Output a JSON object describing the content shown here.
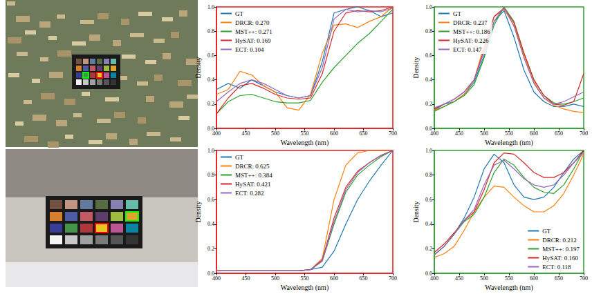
{
  "chart_data": [
    {
      "type": "line",
      "xlabel": "Wavelength (nm)",
      "ylabel": "Density",
      "x": [
        400,
        420,
        440,
        460,
        480,
        500,
        520,
        540,
        560,
        580,
        600,
        620,
        640,
        660,
        680,
        700
      ],
      "xlim": [
        400,
        700
      ],
      "xticks": [
        400,
        450,
        500,
        550,
        600,
        650,
        700
      ],
      "ylim": [
        0,
        1
      ],
      "yticks": [
        {
          "value": 0,
          "label": "0.0"
        },
        0.2,
        0.4,
        0.6,
        0.8,
        {
          "value": 1,
          "label": "1.0"
        }
      ],
      "grid": false,
      "legend": "upper left",
      "series": [
        {
          "name": "GT",
          "color": "#1f77b4",
          "values": [
            0.32,
            0.37,
            0.33,
            0.4,
            0.35,
            0.3,
            0.27,
            0.25,
            0.27,
            0.55,
            0.95,
            0.98,
            1.0,
            0.97,
            0.92,
            0.95
          ]
        },
        {
          "name": "DRCR: 0.270",
          "color": "#ff7f0e",
          "values": [
            0.28,
            0.32,
            0.47,
            0.44,
            0.35,
            0.3,
            0.17,
            0.15,
            0.28,
            0.62,
            0.85,
            0.86,
            0.83,
            0.88,
            0.92,
            1.0
          ]
        },
        {
          "name": "MST++: 0.271",
          "color": "#2ca02c",
          "values": [
            0.12,
            0.22,
            0.27,
            0.28,
            0.25,
            0.22,
            0.21,
            0.21,
            0.23,
            0.38,
            0.5,
            0.6,
            0.7,
            0.78,
            0.88,
            0.98
          ]
        },
        {
          "name": "HySAT: 0.169",
          "color": "#d62728",
          "values": [
            0.12,
            0.25,
            0.35,
            0.37,
            0.33,
            0.28,
            0.25,
            0.24,
            0.25,
            0.45,
            0.8,
            0.95,
            0.97,
            0.96,
            0.97,
            1.0
          ]
        },
        {
          "name": "ECT: 0.104",
          "color": "#9467bd",
          "values": [
            0.22,
            0.3,
            0.37,
            0.4,
            0.37,
            0.32,
            0.27,
            0.25,
            0.27,
            0.5,
            0.9,
            0.98,
            0.96,
            0.97,
            0.96,
            0.99
          ]
        }
      ]
    },
    {
      "type": "line",
      "xlabel": "Wavelength (nm)",
      "ylabel": "Density",
      "x": [
        400,
        420,
        440,
        460,
        480,
        500,
        520,
        540,
        560,
        580,
        600,
        620,
        640,
        660,
        680,
        700
      ],
      "xlim": [
        400,
        700
      ],
      "xticks": [
        400,
        450,
        500,
        550,
        600,
        650,
        700
      ],
      "ylim": [
        0,
        1
      ],
      "yticks": [
        {
          "value": 0,
          "label": "0.0"
        },
        0.2,
        0.4,
        0.6,
        0.8,
        {
          "value": 1,
          "label": "1.0"
        }
      ],
      "grid": false,
      "legend": "upper left",
      "series": [
        {
          "name": "GT",
          "color": "#1f77b4",
          "values": [
            0.15,
            0.2,
            0.22,
            0.28,
            0.38,
            0.6,
            0.88,
            0.97,
            0.75,
            0.48,
            0.3,
            0.22,
            0.18,
            0.18,
            0.2,
            0.18
          ]
        },
        {
          "name": "DRCR: 0.237",
          "color": "#ff7f0e",
          "values": [
            0.15,
            0.18,
            0.22,
            0.28,
            0.4,
            0.68,
            0.92,
            0.98,
            0.85,
            0.6,
            0.38,
            0.25,
            0.19,
            0.16,
            0.14,
            0.13
          ]
        },
        {
          "name": "MST++: 0.186",
          "color": "#2ca02c",
          "values": [
            0.14,
            0.18,
            0.22,
            0.27,
            0.36,
            0.58,
            0.85,
            1.0,
            0.88,
            0.62,
            0.4,
            0.27,
            0.21,
            0.2,
            0.22,
            0.25
          ]
        },
        {
          "name": "HySAT: 0.226",
          "color": "#d62728",
          "values": [
            0.16,
            0.2,
            0.24,
            0.3,
            0.4,
            0.65,
            0.92,
            0.99,
            0.87,
            0.62,
            0.4,
            0.27,
            0.2,
            0.19,
            0.22,
            0.45
          ]
        },
        {
          "name": "ECT: 0.147",
          "color": "#9467bd",
          "values": [
            0.17,
            0.2,
            0.24,
            0.3,
            0.4,
            0.63,
            0.88,
            1.0,
            0.84,
            0.58,
            0.37,
            0.25,
            0.2,
            0.22,
            0.26,
            0.3
          ]
        }
      ]
    },
    {
      "type": "line",
      "xlabel": "Wavelength (nm)",
      "ylabel": "Density",
      "x": [
        400,
        420,
        440,
        460,
        480,
        500,
        520,
        540,
        560,
        580,
        600,
        620,
        640,
        660,
        680,
        700
      ],
      "xlim": [
        400,
        700
      ],
      "xticks": [
        400,
        450,
        500,
        550,
        600,
        650,
        700
      ],
      "ylim": [
        0,
        1
      ],
      "yticks": [
        {
          "value": 0,
          "label": "0.0"
        },
        0.2,
        0.4,
        0.6,
        0.8,
        {
          "value": 1,
          "label": "1.0"
        }
      ],
      "grid": false,
      "legend": "upper left",
      "series": [
        {
          "name": "GT",
          "color": "#1f77b4",
          "values": [
            0.02,
            0.02,
            0.02,
            0.02,
            0.02,
            0.02,
            0.02,
            0.02,
            0.03,
            0.05,
            0.18,
            0.4,
            0.6,
            0.75,
            0.88,
            1.0
          ]
        },
        {
          "name": "DRCR: 0.625",
          "color": "#ff7f0e",
          "values": [
            0.02,
            0.02,
            0.02,
            0.02,
            0.02,
            0.02,
            0.02,
            0.02,
            0.03,
            0.12,
            0.6,
            0.88,
            0.98,
            1.0,
            1.0,
            1.0
          ]
        },
        {
          "name": "MST++: 0.384",
          "color": "#2ca02c",
          "values": [
            0.02,
            0.02,
            0.02,
            0.02,
            0.02,
            0.02,
            0.02,
            0.02,
            0.03,
            0.1,
            0.4,
            0.66,
            0.8,
            0.88,
            0.95,
            1.0
          ]
        },
        {
          "name": "HySAT: 0.421",
          "color": "#d62728",
          "values": [
            0.02,
            0.02,
            0.02,
            0.02,
            0.02,
            0.02,
            0.02,
            0.02,
            0.03,
            0.11,
            0.45,
            0.7,
            0.83,
            0.9,
            0.96,
            1.0
          ]
        },
        {
          "name": "ECT: 0.282",
          "color": "#9467bd",
          "values": [
            0.02,
            0.02,
            0.02,
            0.02,
            0.02,
            0.02,
            0.02,
            0.02,
            0.03,
            0.1,
            0.42,
            0.68,
            0.82,
            0.9,
            0.96,
            1.0
          ]
        }
      ]
    },
    {
      "type": "line",
      "xlabel": "Wavelength (nm)",
      "ylabel": "Density",
      "x": [
        400,
        420,
        440,
        460,
        480,
        500,
        520,
        540,
        560,
        580,
        600,
        620,
        640,
        660,
        680,
        700
      ],
      "xlim": [
        400,
        700
      ],
      "xticks": [
        400,
        450,
        500,
        550,
        600,
        650,
        700
      ],
      "ylim": [
        0,
        1
      ],
      "yticks": [
        {
          "value": 0,
          "label": "0.0"
        },
        0.2,
        0.4,
        0.6,
        0.8,
        {
          "value": 1,
          "label": "1.0"
        }
      ],
      "grid": false,
      "legend": "lower right",
      "series": [
        {
          "name": "GT",
          "color": "#1f77b4",
          "values": [
            0.15,
            0.22,
            0.32,
            0.45,
            0.62,
            0.85,
            0.97,
            0.9,
            0.72,
            0.62,
            0.6,
            0.62,
            0.7,
            0.82,
            0.93,
            1.0
          ]
        },
        {
          "name": "DRCR: 0.212",
          "color": "#ff7f0e",
          "values": [
            0.13,
            0.16,
            0.22,
            0.35,
            0.5,
            0.62,
            0.71,
            0.7,
            0.62,
            0.55,
            0.5,
            0.5,
            0.55,
            0.65,
            0.8,
            0.97
          ]
        },
        {
          "name": "MST++: 0.197",
          "color": "#2ca02c",
          "values": [
            0.15,
            0.22,
            0.32,
            0.42,
            0.48,
            0.62,
            0.82,
            0.93,
            0.88,
            0.78,
            0.7,
            0.66,
            0.65,
            0.72,
            0.85,
            1.0
          ]
        },
        {
          "name": "HySAT: 0.160",
          "color": "#d62728",
          "values": [
            0.17,
            0.24,
            0.33,
            0.43,
            0.5,
            0.68,
            0.9,
            0.98,
            0.97,
            0.9,
            0.82,
            0.78,
            0.78,
            0.82,
            0.9,
            1.0
          ]
        },
        {
          "name": "ECT: 0.118",
          "color": "#9467bd",
          "values": [
            0.15,
            0.22,
            0.32,
            0.43,
            0.52,
            0.72,
            0.88,
            0.92,
            0.85,
            0.77,
            0.72,
            0.7,
            0.72,
            0.8,
            0.9,
            0.98
          ]
        }
      ]
    }
  ]
}
